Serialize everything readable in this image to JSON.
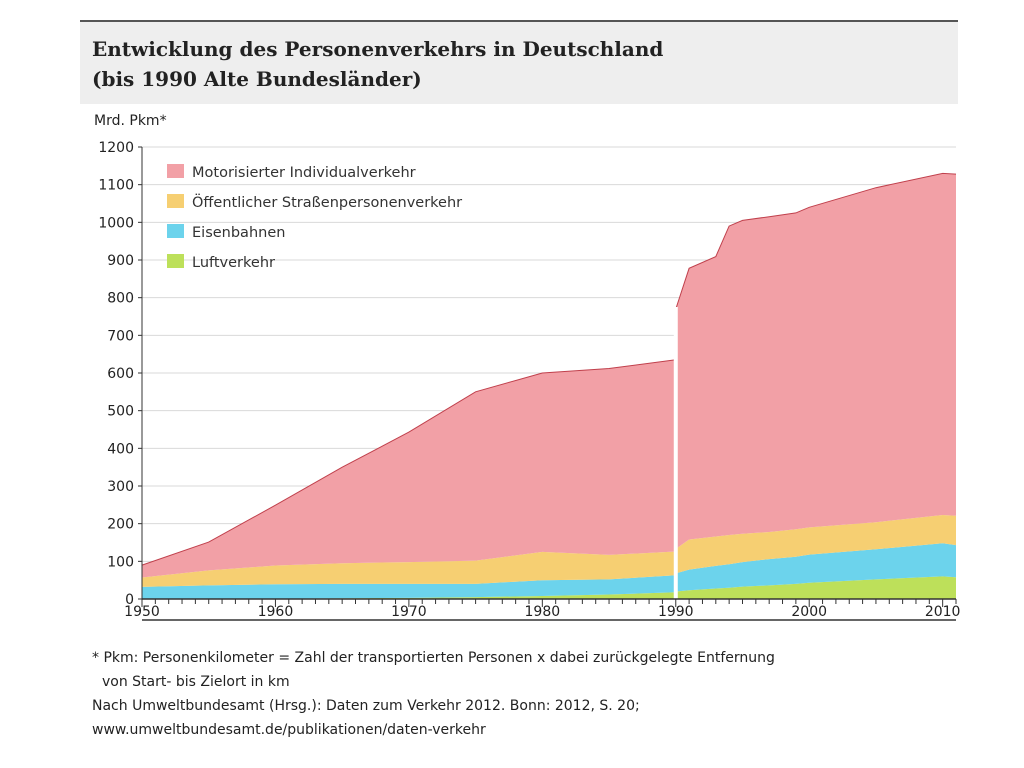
{
  "header": {
    "title_line1": "Entwicklung des Personenverkehrs in Deutschland",
    "title_line2": "(bis 1990 Alte Bundesländer)"
  },
  "chart_data": {
    "type": "area",
    "stacked": true,
    "title": "Entwicklung des Personenverkehrs in Deutschland (bis 1990 Alte Bundesländer)",
    "ylabel": "Mrd. Pkm*",
    "xlabel": "",
    "xlim": [
      1950,
      2011
    ],
    "ylim": [
      0,
      1200
    ],
    "x_ticks": [
      1950,
      1960,
      1970,
      1980,
      1990,
      2000,
      2010
    ],
    "y_ticks": [
      0,
      100,
      200,
      300,
      400,
      500,
      600,
      700,
      800,
      900,
      1000,
      1100,
      1200
    ],
    "grid": "horizontal",
    "legend_position": "top-left",
    "break_at": 1990,
    "segments": [
      {
        "x": [
          1950,
          1955,
          1960,
          1965,
          1970,
          1975,
          1980,
          1985,
          1990
        ],
        "series": [
          {
            "name": "Luftverkehr",
            "color": "#bde05a",
            "values": [
              0,
              0,
              1,
              2,
              3,
              5,
              8,
              12,
              18
            ]
          },
          {
            "name": "Eisenbahnen",
            "color": "#6cd3ec",
            "values": [
              32,
              36,
              38,
              38,
              37,
              35,
              42,
              40,
              45
            ]
          },
          {
            "name": "Öffentlicher Straßenpersonenverkehr",
            "color": "#f6cf72",
            "values": [
              25,
              40,
              50,
              55,
              58,
              62,
              75,
              65,
              63
            ]
          },
          {
            "name": "Motorisierter Individualverkehr",
            "color": "#f2a0a6",
            "values": [
              33,
              75,
              160,
              255,
              345,
              448,
              475,
              495,
              509
            ]
          }
        ]
      },
      {
        "x": [
          1990,
          1991,
          1993,
          1994,
          1995,
          1997,
          1999,
          2000,
          2005,
          2010,
          2011
        ],
        "series": [
          {
            "name": "Luftverkehr",
            "color": "#bde05a",
            "values": [
              20,
              23,
              28,
              30,
              33,
              36,
              40,
              43,
              52,
              60,
              58
            ]
          },
          {
            "name": "Eisenbahnen",
            "color": "#6cd3ec",
            "values": [
              48,
              55,
              60,
              62,
              65,
              70,
              72,
              75,
              80,
              88,
              85
            ]
          },
          {
            "name": "Öffentlicher Straßenpersonenverkehr",
            "color": "#f6cf72",
            "values": [
              65,
              80,
              78,
              78,
              75,
              72,
              73,
              72,
              72,
              75,
              78
            ]
          },
          {
            "name": "Motorisierter Individualverkehr",
            "color": "#f2a0a6",
            "values": [
              637,
              720,
              743,
              820,
              832,
              837,
              840,
              850,
              888,
              907,
              907
            ]
          }
        ]
      }
    ],
    "legend": [
      {
        "label": "Motorisierter Individualverkehr",
        "color": "#f2a0a6"
      },
      {
        "label": "Öffentlicher Straßenpersonenverkehr",
        "color": "#f6cf72"
      },
      {
        "label": "Eisenbahnen",
        "color": "#6cd3ec"
      },
      {
        "label": "Luftverkehr",
        "color": "#bde05a"
      }
    ]
  },
  "footnote": {
    "line1": "* Pkm: Personenkilometer = Zahl der transportierten Personen x dabei zurückgelegte Entfernung",
    "line2": "von Start- bis Zielort in km",
    "line3": "Nach Umweltbundesamt (Hrsg.): Daten zum Verkehr 2012. Bonn: 2012, S. 20;",
    "line4": "www.umweltbundesamt.de/publikationen/daten-verkehr"
  }
}
